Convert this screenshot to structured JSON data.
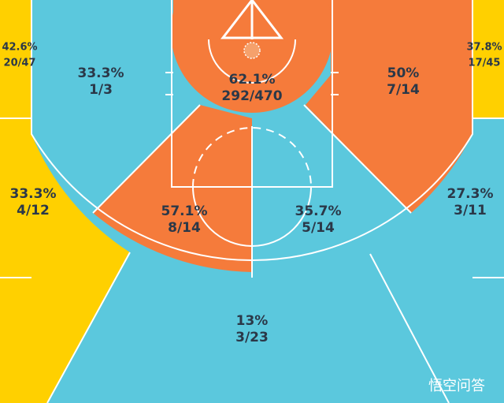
{
  "zones": [
    {
      "pct": "42.6%",
      "shots": "20/47"
    },
    {
      "pct": "33.3%",
      "shots": "1/3"
    },
    {
      "pct": "62.1%",
      "shots": "292/470"
    },
    {
      "pct": "50%",
      "shots": "7/14"
    },
    {
      "pct": "37.8%",
      "shots": "17/45"
    },
    {
      "pct": "33.3%",
      "shots": "4/12"
    },
    {
      "pct": "27.3%",
      "shots": "3/11"
    },
    {
      "pct": "57.1%",
      "shots": "8/14"
    },
    {
      "pct": "35.7%",
      "shots": "5/14"
    },
    {
      "pct": "13%",
      "shots": "3/23"
    }
  ],
  "watermark": "悟空问答"
}
